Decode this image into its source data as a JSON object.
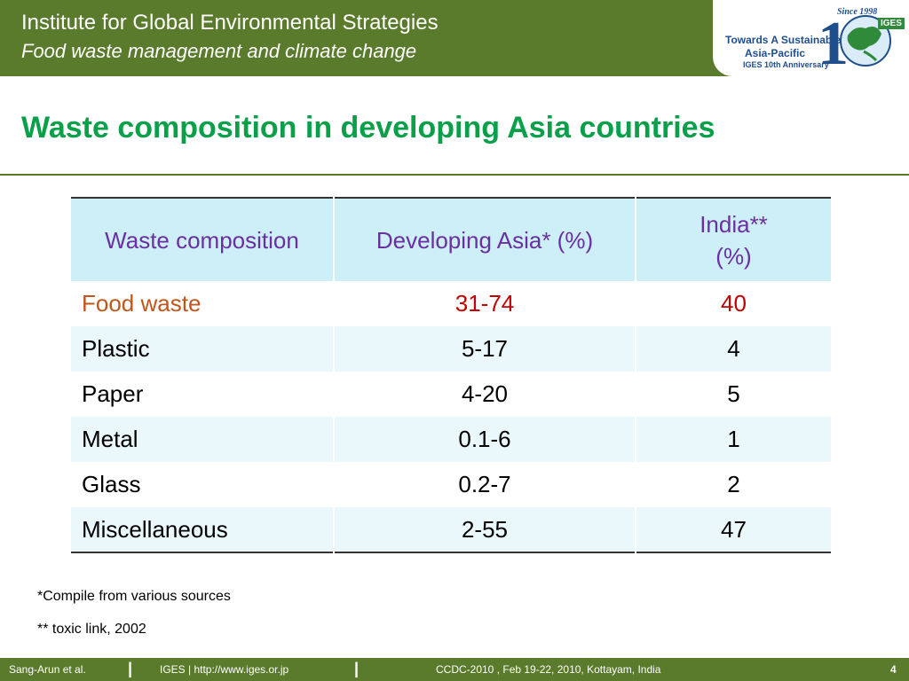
{
  "header": {
    "title": "Institute for Global Environmental Strategies",
    "subtitle": "Food waste management and climate change",
    "logo": {
      "line1": "Towards A Sustainable",
      "line2": "Asia-Pacific",
      "line3": "IGES 10th Anniversary",
      "since": "Since 1998",
      "badge": "IGES"
    }
  },
  "slide_title": "Waste composition in developing Asia countries",
  "table": {
    "headers": [
      "Waste composition",
      "Developing Asia* (%)",
      "India** (%)"
    ],
    "rows": [
      [
        "Food waste",
        "31-74",
        "40"
      ],
      [
        "Plastic",
        "5-17",
        "4"
      ],
      [
        "Paper",
        "4-20",
        "5"
      ],
      [
        "Metal",
        "0.1-6",
        "1"
      ],
      [
        "Glass",
        "0.2-7",
        "2"
      ],
      [
        "Miscellaneous",
        "2-55",
        "47"
      ]
    ]
  },
  "notes": [
    "*Compile from various sources",
    "** toxic link, 2002"
  ],
  "footer": {
    "author": "Sang-Arun et al.",
    "site": "IGES | http://www.iges.or.jp",
    "event": "CCDC-2010 , Feb 19-22, 2010, Kottayam, India",
    "page": "4"
  },
  "colors": {
    "header_bg": "#5a7a2c",
    "title": "#0aa04a",
    "table_header_bg": "#cdeff8",
    "table_header_text": "#6a2fa0",
    "highlight_text": "#c0561a"
  }
}
